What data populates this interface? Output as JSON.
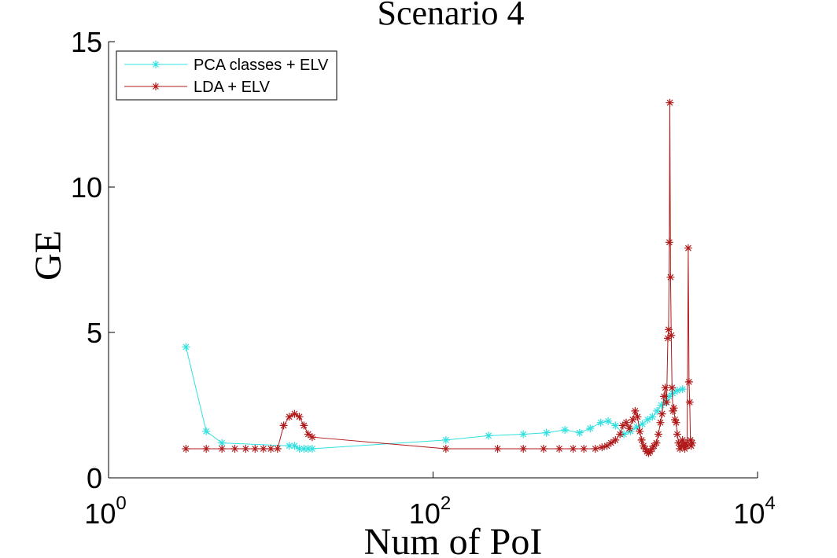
{
  "chart_data": {
    "type": "line",
    "title": "Scenario 4",
    "xlabel": "Num of PoI",
    "ylabel": "GE",
    "x_scale": "log",
    "xlim": [
      1,
      10000
    ],
    "ylim": [
      0,
      15
    ],
    "x_ticks": [
      {
        "value": 1,
        "base": "10",
        "exp": "0"
      },
      {
        "value": 100,
        "base": "10",
        "exp": "2"
      },
      {
        "value": 10000,
        "base": "10",
        "exp": "4"
      }
    ],
    "y_ticks": [
      {
        "value": 0,
        "label": "0"
      },
      {
        "value": 5,
        "label": "5"
      },
      {
        "value": 10,
        "label": "10"
      },
      {
        "value": 15,
        "label": "15"
      }
    ],
    "grid": false,
    "legend_position": "top-left",
    "series": [
      {
        "name": "PCA classes + ELV",
        "color": "#33e0e0",
        "marker": "asterisk",
        "points": [
          [
            3,
            4.5
          ],
          [
            4,
            1.6
          ],
          [
            5,
            1.2
          ],
          [
            13,
            1.1
          ],
          [
            14,
            1.1
          ],
          [
            15,
            1.0
          ],
          [
            16,
            1.0
          ],
          [
            17,
            1.0
          ],
          [
            18,
            1.0
          ],
          [
            120,
            1.3
          ],
          [
            220,
            1.45
          ],
          [
            360,
            1.5
          ],
          [
            500,
            1.55
          ],
          [
            650,
            1.65
          ],
          [
            800,
            1.55
          ],
          [
            930,
            1.7
          ],
          [
            1080,
            1.9
          ],
          [
            1200,
            1.95
          ],
          [
            1330,
            1.8
          ],
          [
            1500,
            1.5
          ],
          [
            1650,
            1.6
          ],
          [
            1800,
            1.75
          ],
          [
            1950,
            1.85
          ],
          [
            2100,
            2.0
          ],
          [
            2250,
            2.1
          ],
          [
            2400,
            2.3
          ],
          [
            2550,
            2.5
          ],
          [
            2700,
            2.6
          ],
          [
            2850,
            2.8
          ],
          [
            3000,
            2.9
          ],
          [
            3200,
            3.0
          ],
          [
            3450,
            3.05
          ]
        ]
      },
      {
        "name": "LDA + ELV",
        "color": "#b01a1a",
        "marker": "asterisk",
        "points": [
          [
            3,
            1.0
          ],
          [
            4,
            1.0
          ],
          [
            5,
            1.0
          ],
          [
            6,
            1.0
          ],
          [
            7,
            1.0
          ],
          [
            8,
            1.0
          ],
          [
            9,
            1.0
          ],
          [
            10,
            1.0
          ],
          [
            11,
            1.0
          ],
          [
            12,
            1.8
          ],
          [
            13,
            2.1
          ],
          [
            14,
            2.2
          ],
          [
            15,
            2.1
          ],
          [
            16,
            1.8
          ],
          [
            17,
            1.5
          ],
          [
            18,
            1.4
          ],
          [
            120,
            1.0
          ],
          [
            250,
            1.0
          ],
          [
            360,
            1.0
          ],
          [
            480,
            1.0
          ],
          [
            600,
            1.0
          ],
          [
            730,
            1.0
          ],
          [
            850,
            1.0
          ],
          [
            1000,
            1.0
          ],
          [
            1100,
            1.05
          ],
          [
            1180,
            1.1
          ],
          [
            1250,
            1.2
          ],
          [
            1330,
            1.3
          ],
          [
            1420,
            1.5
          ],
          [
            1480,
            1.8
          ],
          [
            1550,
            1.9
          ],
          [
            1620,
            1.7
          ],
          [
            1700,
            2.0
          ],
          [
            1760,
            2.3
          ],
          [
            1820,
            2.1
          ],
          [
            1880,
            1.6
          ],
          [
            1930,
            1.3
          ],
          [
            1980,
            1.1
          ],
          [
            2030,
            1.0
          ],
          [
            2080,
            0.9
          ],
          [
            2130,
            0.85
          ],
          [
            2180,
            0.9
          ],
          [
            2240,
            1.0
          ],
          [
            2300,
            1.1
          ],
          [
            2380,
            1.2
          ],
          [
            2450,
            1.5
          ],
          [
            2520,
            1.9
          ],
          [
            2580,
            2.2
          ],
          [
            2650,
            2.8
          ],
          [
            2700,
            3.1
          ],
          [
            2750,
            2.6
          ],
          [
            2800,
            4.8
          ],
          [
            2830,
            5.1
          ],
          [
            2860,
            8.1
          ],
          [
            2880,
            12.9
          ],
          [
            2910,
            6.9
          ],
          [
            2940,
            4.9
          ],
          [
            2970,
            3.1
          ],
          [
            3010,
            2.3
          ],
          [
            3050,
            2.4
          ],
          [
            3100,
            2.0
          ],
          [
            3150,
            1.9
          ],
          [
            3200,
            1.5
          ],
          [
            3260,
            1.2
          ],
          [
            3320,
            1.0
          ],
          [
            3400,
            1.1
          ],
          [
            3450,
            1.3
          ],
          [
            3500,
            1.1
          ],
          [
            3560,
            1.0
          ],
          [
            3620,
            1.2
          ],
          [
            3680,
            1.1
          ],
          [
            3740,
            7.9
          ],
          [
            3780,
            3.3
          ],
          [
            3820,
            2.6
          ],
          [
            3860,
            1.3
          ],
          [
            3900,
            1.1
          ],
          [
            3950,
            1.2
          ]
        ]
      }
    ]
  }
}
